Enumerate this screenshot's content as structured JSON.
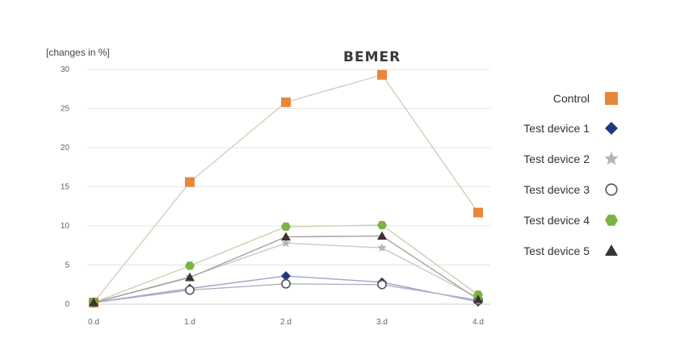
{
  "logo_text": "BEMER",
  "chart_data": {
    "type": "line",
    "ylabel": "[changes in %]",
    "xlabel": "",
    "categories": [
      "0.d",
      "1.d",
      "2.d",
      "3.d",
      "4.d"
    ],
    "ylim": [
      0,
      30
    ],
    "yticks": [
      0,
      5,
      10,
      15,
      20,
      25,
      30
    ],
    "grid": true,
    "legend_position": "right",
    "series": [
      {
        "name": "Control",
        "marker": "square",
        "color": "#E8873A",
        "line_color": "#D8CDB8",
        "values": [
          0.2,
          15.6,
          25.8,
          29.3,
          11.7
        ]
      },
      {
        "name": "Test device 1",
        "marker": "diamond",
        "color": "#1F3A80",
        "line_color": "#9AA6CC",
        "values": [
          0.2,
          2.0,
          3.6,
          2.8,
          0.3
        ]
      },
      {
        "name": "Test device 2",
        "marker": "star",
        "color": "#B5B5B5",
        "line_color": "#C9C9C9",
        "values": [
          0.2,
          3.5,
          7.8,
          7.2,
          0.8
        ]
      },
      {
        "name": "Test device 3",
        "marker": "open-circle",
        "color": "#555555",
        "line_color": "#B0B0C4",
        "values": [
          0.2,
          1.8,
          2.6,
          2.5,
          0.5
        ]
      },
      {
        "name": "Test device 4",
        "marker": "hexagon",
        "color": "#7CB342",
        "line_color": "#C8D2B0",
        "values": [
          0.2,
          4.9,
          9.9,
          10.1,
          1.2
        ]
      },
      {
        "name": "Test device 5",
        "marker": "triangle",
        "color": "#3B3330",
        "line_color": "#A8A0A0",
        "values": [
          0.2,
          3.4,
          8.6,
          8.7,
          0.6
        ]
      }
    ]
  }
}
